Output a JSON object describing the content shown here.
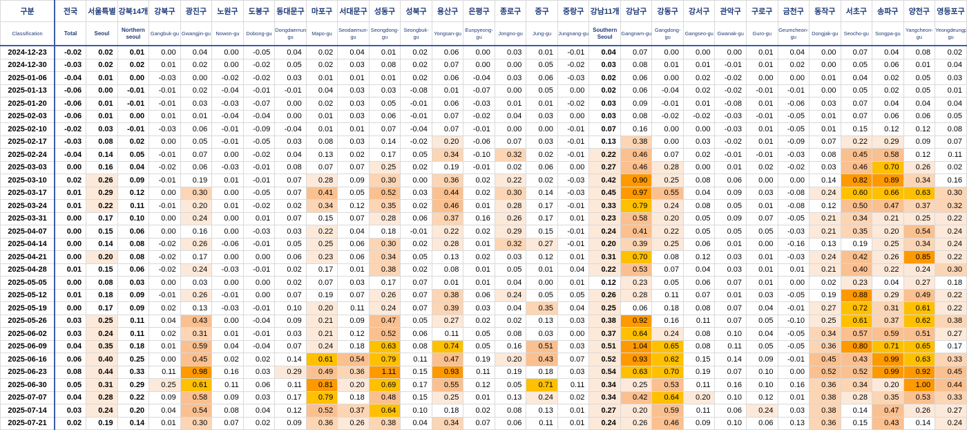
{
  "header": {
    "corner_ko": "구분",
    "corner_en": "Classification",
    "columns": [
      {
        "ko": "전국",
        "en": "Total",
        "bold": true
      },
      {
        "ko": "서울특별",
        "en": "Seoul",
        "bold": true
      },
      {
        "ko": "강북14개",
        "en": "Northern seoul",
        "bold": true
      },
      {
        "ko": "강북구",
        "en": "Gangbuk-gu",
        "bold": false
      },
      {
        "ko": "광진구",
        "en": "Gwangjin-gu",
        "bold": false
      },
      {
        "ko": "노원구",
        "en": "Nowon-gu",
        "bold": false
      },
      {
        "ko": "도봉구",
        "en": "Dobong-gu",
        "bold": false
      },
      {
        "ko": "동대문구",
        "en": "Dongdaemun-gu",
        "bold": false
      },
      {
        "ko": "마포구",
        "en": "Mapo-gu",
        "bold": false
      },
      {
        "ko": "서대문구",
        "en": "Seodaemun-gu",
        "bold": false
      },
      {
        "ko": "성동구",
        "en": "Seongdong-gu",
        "bold": false
      },
      {
        "ko": "성북구",
        "en": "Seongbuk-gu",
        "bold": false
      },
      {
        "ko": "용산구",
        "en": "Yongsan-gu",
        "bold": false
      },
      {
        "ko": "은평구",
        "en": "Eunpyeong-gu",
        "bold": false
      },
      {
        "ko": "종로구",
        "en": "Jongno-gu",
        "bold": false
      },
      {
        "ko": "중구",
        "en": "Jung-gu",
        "bold": false
      },
      {
        "ko": "중랑구",
        "en": "Jungnang-gu",
        "bold": false
      },
      {
        "ko": "강남11개",
        "en": "Southern Seoul",
        "bold": true
      },
      {
        "ko": "강남구",
        "en": "Gangnam-gu",
        "bold": false
      },
      {
        "ko": "강동구",
        "en": "Gangdong-gu",
        "bold": false
      },
      {
        "ko": "강서구",
        "en": "Gangseo-gu",
        "bold": false
      },
      {
        "ko": "관악구",
        "en": "Gwanak-gu",
        "bold": false
      },
      {
        "ko": "구로구",
        "en": "Guro-gu",
        "bold": false
      },
      {
        "ko": "금천구",
        "en": "Geumcheon-gu",
        "bold": false
      },
      {
        "ko": "동작구",
        "en": "Dongjak-gu",
        "bold": false
      },
      {
        "ko": "서초구",
        "en": "Seocho-gu",
        "bold": false
      },
      {
        "ko": "송파구",
        "en": "Songpa-gu",
        "bold": false
      },
      {
        "ko": "양천구",
        "en": "Yangcheon-gu",
        "bold": false
      },
      {
        "ko": "영등포구",
        "en": "Yeongdeungpo-gu",
        "bold": false
      }
    ]
  },
  "rows": [
    {
      "date": "2024-12-23",
      "values": [
        "-0.02",
        "0.02",
        "0.01",
        "0.00",
        "0.04",
        "0.00",
        "-0.05",
        "0.04",
        "0.02",
        "0.04",
        "0.01",
        "0.02",
        "0.06",
        "0.00",
        "0.03",
        "0.01",
        "-0.01",
        "0.04",
        "0.07",
        "0.00",
        "0.00",
        "0.00",
        "0.01",
        "0.04",
        "0.00",
        "0.07",
        "0.04",
        "0.08",
        "0.02"
      ]
    },
    {
      "date": "2024-12-30",
      "values": [
        "-0.03",
        "0.02",
        "0.02",
        "0.01",
        "0.02",
        "0.00",
        "-0.02",
        "0.05",
        "0.02",
        "0.03",
        "0.08",
        "0.02",
        "0.07",
        "0.00",
        "0.00",
        "0.05",
        "-0.02",
        "0.03",
        "0.08",
        "0.01",
        "0.01",
        "-0.01",
        "0.01",
        "0.02",
        "0.00",
        "0.05",
        "0.06",
        "0.01",
        "0.04"
      ]
    },
    {
      "date": "2025-01-06",
      "values": [
        "-0.04",
        "0.01",
        "0.00",
        "-0.03",
        "0.00",
        "-0.02",
        "-0.02",
        "0.03",
        "0.01",
        "0.01",
        "0.01",
        "0.02",
        "0.06",
        "-0.04",
        "0.03",
        "0.06",
        "-0.03",
        "0.02",
        "0.06",
        "0.00",
        "0.02",
        "-0.02",
        "0.00",
        "0.00",
        "0.01",
        "0.04",
        "0.02",
        "0.05",
        "0.03"
      ]
    },
    {
      "date": "2025-01-13",
      "values": [
        "-0.06",
        "0.00",
        "-0.01",
        "-0.01",
        "0.02",
        "-0.04",
        "-0.01",
        "-0.01",
        "0.04",
        "0.03",
        "0.03",
        "-0.08",
        "0.01",
        "-0.07",
        "0.00",
        "0.05",
        "0.00",
        "0.02",
        "0.06",
        "-0.04",
        "0.02",
        "-0.02",
        "-0.01",
        "-0.01",
        "0.00",
        "0.05",
        "0.02",
        "0.05",
        "0.01"
      ]
    },
    {
      "date": "2025-01-20",
      "values": [
        "-0.06",
        "0.01",
        "-0.01",
        "-0.01",
        "0.03",
        "-0.03",
        "-0.07",
        "0.00",
        "0.02",
        "0.03",
        "0.05",
        "-0.01",
        "0.06",
        "-0.03",
        "0.01",
        "0.01",
        "-0.02",
        "0.03",
        "0.09",
        "-0.01",
        "0.01",
        "-0.08",
        "0.01",
        "-0.06",
        "0.03",
        "0.07",
        "0.04",
        "0.04",
        "0.04"
      ]
    },
    {
      "date": "2025-02-03",
      "values": [
        "-0.06",
        "0.01",
        "0.00",
        "0.01",
        "0.01",
        "-0.04",
        "-0.04",
        "0.00",
        "0.01",
        "0.03",
        "0.06",
        "-0.01",
        "0.07",
        "-0.02",
        "0.04",
        "0.03",
        "0.00",
        "0.03",
        "0.08",
        "-0.02",
        "-0.02",
        "-0.03",
        "-0.01",
        "-0.05",
        "0.01",
        "0.07",
        "0.06",
        "0.06",
        "0.05"
      ]
    },
    {
      "date": "2025-02-10",
      "values": [
        "-0.02",
        "0.03",
        "-0.01",
        "-0.03",
        "0.06",
        "-0.01",
        "-0.09",
        "-0.04",
        "0.01",
        "0.01",
        "0.07",
        "-0.04",
        "0.07",
        "-0.01",
        "0.00",
        "0.00",
        "-0.01",
        "0.07",
        "0.16",
        "0.00",
        "0.00",
        "-0.03",
        "0.01",
        "-0.05",
        "0.01",
        "0.15",
        "0.12",
        "0.12",
        "0.08"
      ]
    },
    {
      "date": "2025-02-17",
      "values": [
        "-0.03",
        "0.08",
        "0.02",
        "0.00",
        "0.05",
        "-0.01",
        "-0.05",
        "0.03",
        "0.08",
        "0.03",
        "0.14",
        "-0.02",
        "0.20",
        "-0.06",
        "0.07",
        "0.03",
        "-0.01",
        "0.13",
        "0.38",
        "0.00",
        "0.03",
        "-0.02",
        "0.01",
        "-0.09",
        "0.07",
        "0.22",
        "0.29",
        "0.09",
        "0.07"
      ]
    },
    {
      "date": "2025-02-24",
      "values": [
        "-0.04",
        "0.14",
        "0.05",
        "-0.01",
        "0.07",
        "0.00",
        "-0.02",
        "0.04",
        "0.13",
        "0.02",
        "0.17",
        "0.05",
        "0.34",
        "-0.10",
        "0.32",
        "0.02",
        "-0.01",
        "0.22",
        "0.46",
        "0.07",
        "0.02",
        "-0.01",
        "-0.01",
        "-0.03",
        "0.08",
        "0.45",
        "0.58",
        "0.12",
        "0.11"
      ]
    },
    {
      "date": "2025-03-03",
      "values": [
        "0.00",
        "0.16",
        "0.04",
        "-0.02",
        "0.06",
        "-0.03",
        "-0.01",
        "0.08",
        "0.07",
        "0.07",
        "0.25",
        "0.02",
        "0.19",
        "-0.01",
        "0.02",
        "0.06",
        "0.00",
        "0.27",
        "0.46",
        "0.28",
        "0.00",
        "0.01",
        "0.02",
        "-0.02",
        "0.03",
        "0.46",
        "0.70",
        "0.26",
        "0.02"
      ]
    },
    {
      "date": "2025-03-10",
      "values": [
        "0.02",
        "0.26",
        "0.09",
        "-0.01",
        "0.19",
        "0.01",
        "-0.01",
        "0.07",
        "0.28",
        "0.09",
        "0.30",
        "0.00",
        "0.36",
        "0.02",
        "0.22",
        "0.02",
        "-0.03",
        "0.42",
        "0.90",
        "0.25",
        "0.08",
        "0.06",
        "0.00",
        "0.00",
        "0.14",
        "0.82",
        "0.89",
        "0.34",
        "0.16"
      ]
    },
    {
      "date": "2025-03-17",
      "values": [
        "0.01",
        "0.29",
        "0.12",
        "0.00",
        "0.30",
        "0.00",
        "-0.05",
        "0.07",
        "0.41",
        "0.05",
        "0.52",
        "0.03",
        "0.44",
        "0.02",
        "0.30",
        "0.14",
        "-0.03",
        "0.45",
        "0.97",
        "0.55",
        "0.04",
        "0.09",
        "0.03",
        "-0.08",
        "0.24",
        "0.60",
        "0.66",
        "0.63",
        "0.30"
      ]
    },
    {
      "date": "2025-03-24",
      "values": [
        "0.01",
        "0.22",
        "0.11",
        "-0.01",
        "0.20",
        "0.01",
        "-0.02",
        "0.02",
        "0.34",
        "0.12",
        "0.35",
        "0.02",
        "0.46",
        "0.01",
        "0.28",
        "0.17",
        "-0.01",
        "0.33",
        "0.79",
        "0.24",
        "0.08",
        "0.05",
        "0.01",
        "-0.08",
        "0.12",
        "0.50",
        "0.47",
        "0.37",
        "0.32"
      ]
    },
    {
      "date": "2025-03-31",
      "values": [
        "0.00",
        "0.17",
        "0.10",
        "0.00",
        "0.24",
        "0.00",
        "0.01",
        "0.07",
        "0.15",
        "0.07",
        "0.28",
        "0.06",
        "0.37",
        "0.16",
        "0.26",
        "0.17",
        "0.01",
        "0.23",
        "0.58",
        "0.20",
        "0.05",
        "0.09",
        "0.07",
        "-0.05",
        "0.21",
        "0.34",
        "0.21",
        "0.25",
        "0.22"
      ]
    },
    {
      "date": "2025-04-07",
      "values": [
        "0.00",
        "0.15",
        "0.06",
        "0.00",
        "0.16",
        "0.00",
        "-0.03",
        "0.03",
        "0.22",
        "0.04",
        "0.18",
        "-0.01",
        "0.22",
        "0.02",
        "0.29",
        "0.15",
        "-0.01",
        "0.24",
        "0.41",
        "0.22",
        "0.05",
        "0.05",
        "0.05",
        "-0.03",
        "0.21",
        "0.35",
        "0.20",
        "0.54",
        "0.24"
      ]
    },
    {
      "date": "2025-04-14",
      "values": [
        "0.00",
        "0.14",
        "0.08",
        "-0.02",
        "0.26",
        "-0.06",
        "-0.01",
        "0.05",
        "0.25",
        "0.06",
        "0.30",
        "0.02",
        "0.28",
        "0.01",
        "0.32",
        "0.27",
        "-0.01",
        "0.20",
        "0.39",
        "0.25",
        "0.06",
        "0.01",
        "0.00",
        "-0.16",
        "0.13",
        "0.19",
        "0.25",
        "0.34",
        "0.24"
      ]
    },
    {
      "date": "2025-04-21",
      "values": [
        "0.00",
        "0.20",
        "0.08",
        "-0.02",
        "0.17",
        "0.00",
        "0.00",
        "0.06",
        "0.23",
        "0.06",
        "0.34",
        "0.05",
        "0.13",
        "0.02",
        "0.03",
        "0.12",
        "0.01",
        "0.31",
        "0.70",
        "0.08",
        "0.12",
        "0.03",
        "0.01",
        "-0.03",
        "0.24",
        "0.42",
        "0.26",
        "0.85",
        "0.22"
      ]
    },
    {
      "date": "2025-04-28",
      "values": [
        "0.01",
        "0.15",
        "0.06",
        "-0.02",
        "0.24",
        "-0.03",
        "-0.01",
        "0.02",
        "0.17",
        "0.01",
        "0.38",
        "0.02",
        "0.08",
        "0.01",
        "0.05",
        "0.01",
        "0.04",
        "0.22",
        "0.53",
        "0.07",
        "0.04",
        "0.03",
        "0.01",
        "0.01",
        "0.21",
        "0.40",
        "0.22",
        "0.24",
        "0.30"
      ]
    },
    {
      "date": "2025-05-05",
      "values": [
        "0.00",
        "0.08",
        "0.03",
        "0.00",
        "0.03",
        "0.00",
        "0.00",
        "0.02",
        "0.07",
        "0.03",
        "0.17",
        "0.07",
        "0.01",
        "0.01",
        "0.04",
        "0.00",
        "0.01",
        "0.12",
        "0.23",
        "0.05",
        "0.06",
        "0.07",
        "0.01",
        "0.00",
        "0.02",
        "0.23",
        "0.04",
        "0.27",
        "0.18"
      ]
    },
    {
      "date": "2025-05-12",
      "values": [
        "0.01",
        "0.18",
        "0.09",
        "-0.01",
        "0.26",
        "-0.01",
        "0.00",
        "0.07",
        "0.19",
        "0.07",
        "0.26",
        "0.07",
        "0.38",
        "0.06",
        "0.24",
        "0.05",
        "0.05",
        "0.26",
        "0.28",
        "0.11",
        "0.07",
        "0.01",
        "0.03",
        "-0.05",
        "0.19",
        "0.88",
        "0.29",
        "0.49",
        "0.22"
      ]
    },
    {
      "date": "2025-05-19",
      "values": [
        "0.00",
        "0.17",
        "0.09",
        "0.02",
        "0.13",
        "-0.03",
        "-0.01",
        "0.10",
        "0.20",
        "0.11",
        "0.24",
        "0.07",
        "0.39",
        "0.03",
        "0.04",
        "0.35",
        "0.04",
        "0.25",
        "0.06",
        "0.18",
        "0.08",
        "0.07",
        "0.04",
        "-0.01",
        "0.27",
        "0.72",
        "0.31",
        "0.61",
        "0.22"
      ]
    },
    {
      "date": "2025-05-26",
      "values": [
        "0.03",
        "0.25",
        "0.11",
        "0.04",
        "0.43",
        "0.00",
        "-0.04",
        "0.09",
        "0.21",
        "0.09",
        "0.47",
        "0.05",
        "0.27",
        "0.02",
        "0.02",
        "0.13",
        "0.03",
        "0.38",
        "0.92",
        "0.16",
        "0.11",
        "0.07",
        "0.05",
        "-0.10",
        "0.25",
        "0.61",
        "0.37",
        "0.62",
        "0.38"
      ]
    },
    {
      "date": "2025-06-02",
      "values": [
        "0.03",
        "0.24",
        "0.11",
        "0.02",
        "0.31",
        "0.01",
        "-0.01",
        "0.03",
        "0.21",
        "0.12",
        "0.52",
        "0.06",
        "0.11",
        "0.05",
        "0.08",
        "0.03",
        "0.00",
        "0.37",
        "0.64",
        "0.24",
        "0.08",
        "0.10",
        "0.04",
        "-0.05",
        "0.34",
        "0.57",
        "0.59",
        "0.51",
        "0.27"
      ]
    },
    {
      "date": "2025-06-09",
      "values": [
        "0.04",
        "0.35",
        "0.18",
        "0.01",
        "0.59",
        "0.04",
        "-0.04",
        "0.07",
        "0.24",
        "0.18",
        "0.63",
        "0.08",
        "0.74",
        "0.05",
        "0.16",
        "0.51",
        "0.03",
        "0.51",
        "1.04",
        "0.65",
        "0.08",
        "0.11",
        "0.05",
        "-0.05",
        "0.36",
        "0.80",
        "0.71",
        "0.65",
        "0.17"
      ]
    },
    {
      "date": "2025-06-16",
      "values": [
        "0.06",
        "0.40",
        "0.25",
        "0.00",
        "0.45",
        "0.02",
        "0.02",
        "0.14",
        "0.61",
        "0.54",
        "0.79",
        "0.11",
        "0.47",
        "0.19",
        "0.20",
        "0.43",
        "0.07",
        "0.52",
        "0.93",
        "0.62",
        "0.15",
        "0.14",
        "0.09",
        "-0.01",
        "0.45",
        "0.43",
        "0.99",
        "0.63",
        "0.33"
      ]
    },
    {
      "date": "2025-06-23",
      "values": [
        "0.08",
        "0.44",
        "0.33",
        "0.11",
        "0.98",
        "0.16",
        "0.03",
        "0.29",
        "0.49",
        "0.36",
        "1.11",
        "0.15",
        "0.93",
        "0.11",
        "0.19",
        "0.18",
        "0.03",
        "0.54",
        "0.63",
        "0.70",
        "0.19",
        "0.07",
        "0.10",
        "0.00",
        "0.52",
        "0.52",
        "0.99",
        "0.92",
        "0.45"
      ]
    },
    {
      "date": "2025-06-30",
      "values": [
        "0.05",
        "0.31",
        "0.29",
        "0.25",
        "0.61",
        "0.11",
        "0.06",
        "0.11",
        "0.81",
        "0.20",
        "0.69",
        "0.17",
        "0.55",
        "0.12",
        "0.05",
        "0.71",
        "0.11",
        "0.34",
        "0.25",
        "0.53",
        "0.11",
        "0.16",
        "0.10",
        "0.16",
        "0.36",
        "0.34",
        "0.20",
        "1.00",
        "0.44"
      ]
    },
    {
      "date": "2025-07-07",
      "values": [
        "0.04",
        "0.28",
        "0.22",
        "0.09",
        "0.58",
        "0.09",
        "0.03",
        "0.17",
        "0.79",
        "0.18",
        "0.48",
        "0.15",
        "0.25",
        "0.01",
        "0.13",
        "0.24",
        "0.02",
        "0.34",
        "0.42",
        "0.64",
        "0.20",
        "0.10",
        "0.12",
        "0.01",
        "0.38",
        "0.28",
        "0.35",
        "0.53",
        "0.33"
      ]
    },
    {
      "date": "2025-07-14",
      "values": [
        "0.03",
        "0.24",
        "0.20",
        "0.04",
        "0.54",
        "0.08",
        "0.04",
        "0.12",
        "0.52",
        "0.37",
        "0.64",
        "0.10",
        "0.18",
        "0.02",
        "0.08",
        "0.13",
        "0.01",
        "0.27",
        "0.20",
        "0.59",
        "0.11",
        "0.06",
        "0.24",
        "0.03",
        "0.38",
        "0.14",
        "0.47",
        "0.26",
        "0.27"
      ]
    },
    {
      "date": "2025-07-21",
      "values": [
        "0.02",
        "0.19",
        "0.14",
        "0.01",
        "0.30",
        "0.07",
        "0.02",
        "0.09",
        "0.36",
        "0.26",
        "0.38",
        "0.04",
        "0.34",
        "0.07",
        "0.06",
        "0.11",
        "0.01",
        "0.24",
        "0.26",
        "0.46",
        "0.09",
        "0.10",
        "0.06",
        "0.13",
        "0.36",
        "0.15",
        "0.43",
        "0.14",
        "0.24"
      ]
    }
  ],
  "colors": {
    "tier1": "#fde9d9",
    "tier2": "#fcd5b4",
    "tier3": "#fac090",
    "tier4": "#ffc000",
    "tier5": "#ff9900",
    "header_text": "#1f3b7a"
  }
}
